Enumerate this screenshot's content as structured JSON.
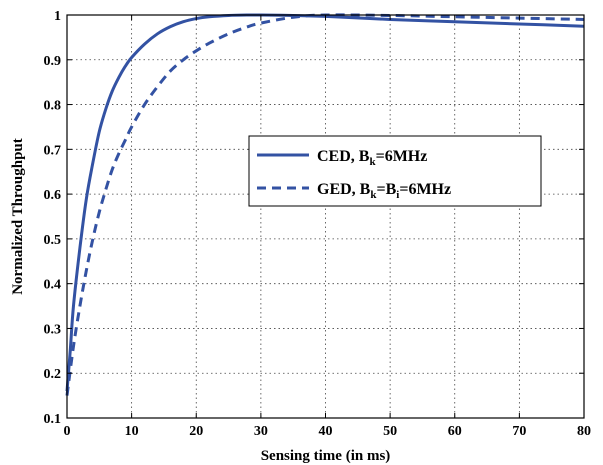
{
  "chart_data": {
    "type": "line",
    "xlabel": "Sensing time (in ms)",
    "ylabel": "Normalized Throughput",
    "xlim": [
      0,
      80
    ],
    "ylim": [
      0.1,
      1.0
    ],
    "xticks": [
      "0",
      "10",
      "20",
      "30",
      "40",
      "50",
      "60",
      "70",
      "80"
    ],
    "yticks": [
      "0.1",
      "0.2",
      "0.3",
      "0.4",
      "0.5",
      "0.6",
      "0.7",
      "0.8",
      "0.9",
      "1"
    ],
    "grid": true,
    "legend_position": "center-right",
    "colors": {
      "series": "#3352a3"
    },
    "series": [
      {
        "name": "CED, B_k=6MHz",
        "legend": {
          "pre": "CED, B",
          "sub1": "k",
          "post1": "=6MHz",
          "sub2": "",
          "post2": ""
        },
        "style": "solid",
        "x": [
          0,
          0.5,
          1,
          2,
          3,
          4,
          5,
          6,
          7,
          8,
          9,
          10,
          12,
          14,
          16,
          18,
          20,
          22,
          25,
          28,
          30,
          35,
          40,
          50,
          60,
          70,
          80
        ],
        "y": [
          0.16,
          0.25,
          0.35,
          0.48,
          0.59,
          0.67,
          0.74,
          0.79,
          0.83,
          0.86,
          0.885,
          0.905,
          0.935,
          0.958,
          0.974,
          0.985,
          0.992,
          0.996,
          0.999,
          1.0,
          1.0,
          0.999,
          0.997,
          0.99,
          0.985,
          0.98,
          0.975
        ]
      },
      {
        "name": "GED, B_k=B_i=6MHz",
        "legend": {
          "pre": "GED, B",
          "sub1": "k",
          "post1": "=B",
          "sub2": "i",
          "post2": "=6MHz"
        },
        "style": "dashed",
        "x": [
          0,
          1,
          2,
          3,
          4,
          5,
          6,
          7,
          8,
          9,
          10,
          12,
          14,
          16,
          18,
          20,
          22,
          25,
          28,
          30,
          35,
          40,
          50,
          60,
          70,
          80
        ],
        "y": [
          0.15,
          0.26,
          0.35,
          0.43,
          0.5,
          0.56,
          0.61,
          0.655,
          0.69,
          0.72,
          0.75,
          0.8,
          0.84,
          0.875,
          0.9,
          0.92,
          0.937,
          0.958,
          0.974,
          0.982,
          0.995,
          1.0,
          0.999,
          0.996,
          0.993,
          0.99
        ]
      }
    ]
  }
}
